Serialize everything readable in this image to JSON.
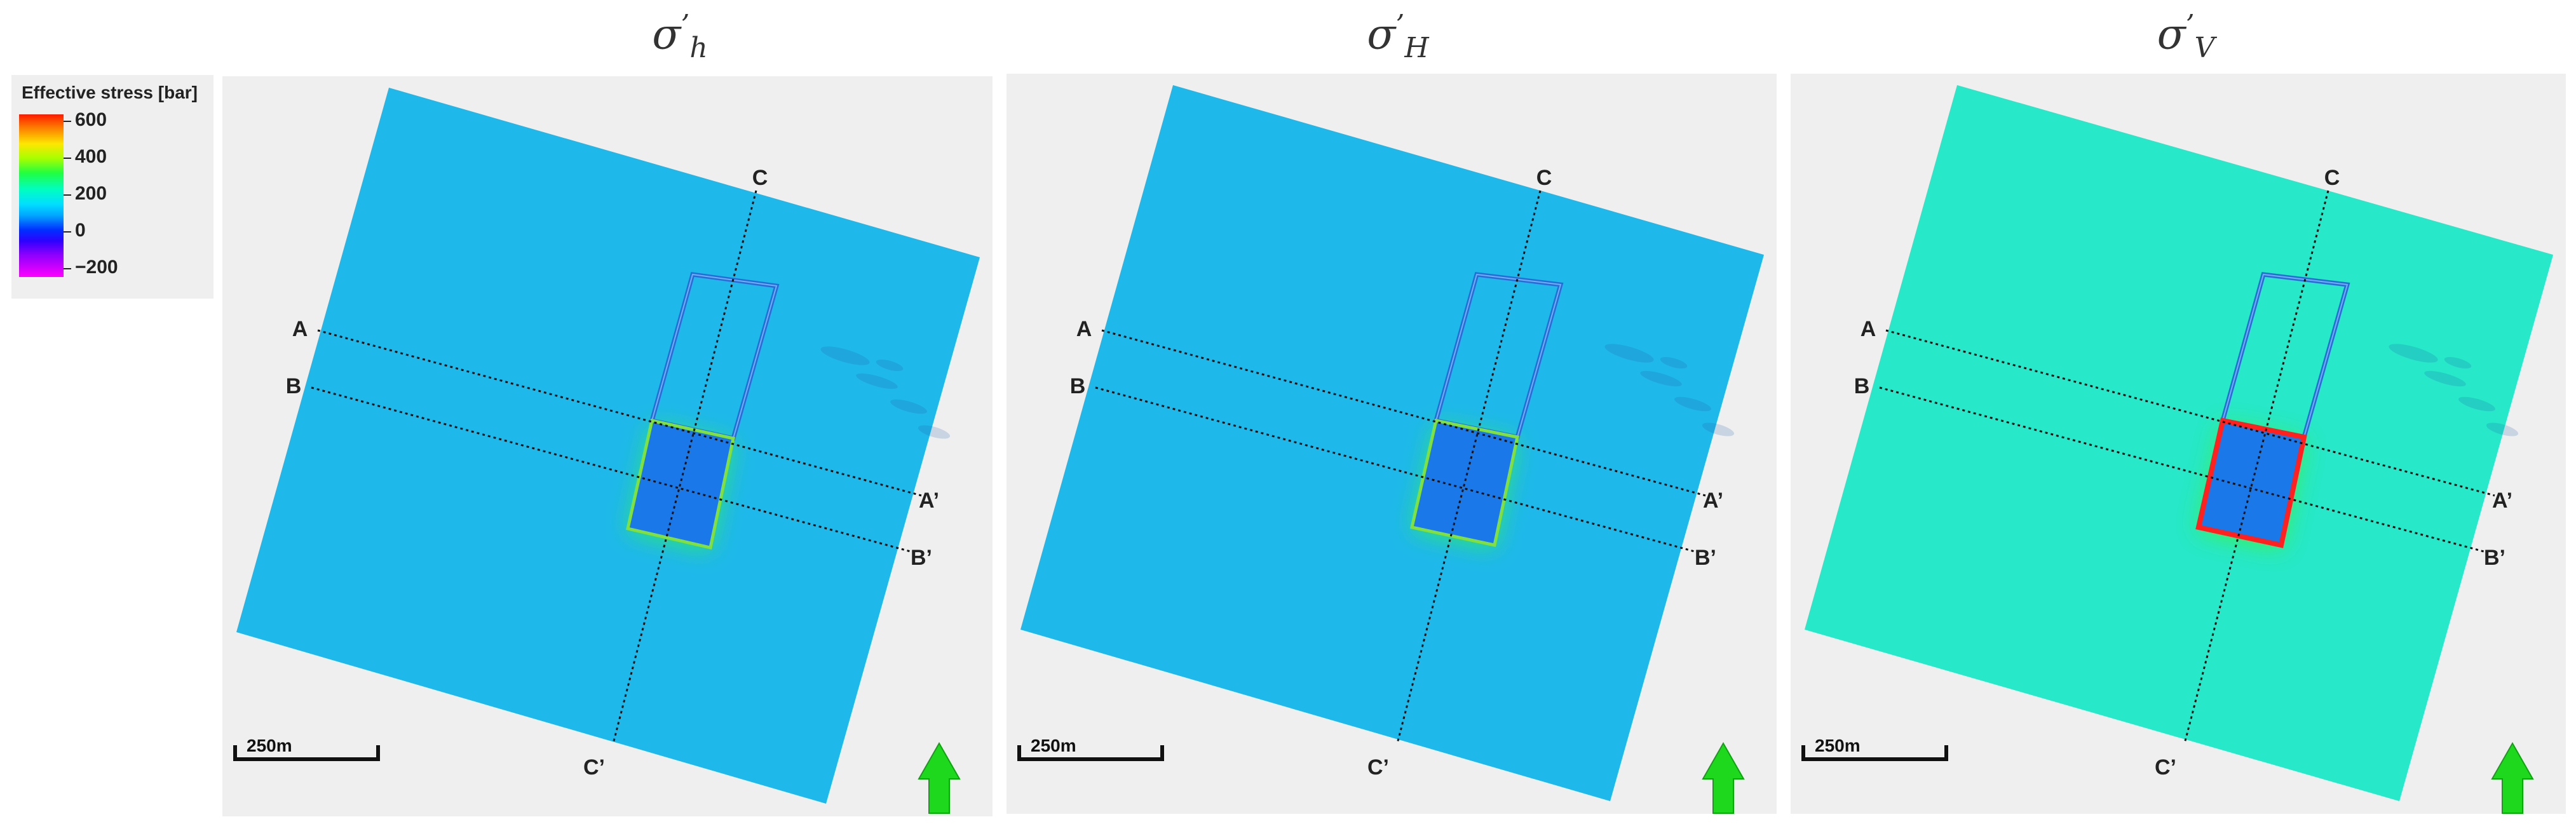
{
  "legend": {
    "title": "Effective stress [bar]",
    "ticks": [
      "600",
      "400",
      "200",
      "0",
      "−200"
    ]
  },
  "panels": [
    {
      "symbol": "σ",
      "prime": "’",
      "subscript": "h",
      "scale_label": "250m",
      "sections": {
        "a": "A",
        "a_prime": "A’",
        "b": "B",
        "b_prime": "B’",
        "c": "C",
        "c_prime": "C’"
      },
      "background_color": "#1fb8ea",
      "block_color": "#1a78e8",
      "halo_color": "#2ee86a",
      "rim_color": "#7fe040"
    },
    {
      "symbol": "σ",
      "prime": "’",
      "subscript": "H",
      "scale_label": "250m",
      "sections": {
        "a": "A",
        "a_prime": "A’",
        "b": "B",
        "b_prime": "B’",
        "c": "C",
        "c_prime": "C’"
      },
      "background_color": "#1fb8ea",
      "block_color": "#1a78e8",
      "halo_color": "#2ee86a",
      "rim_color": "#7fe040"
    },
    {
      "symbol": "σ",
      "prime": "’",
      "subscript": "V",
      "scale_label": "250m",
      "sections": {
        "a": "A",
        "a_prime": "A’",
        "b": "B",
        "b_prime": "B’",
        "c": "C",
        "c_prime": "C’"
      },
      "background_color": "#27e8c8",
      "block_color": "#1a78e8",
      "halo_color": "#3ef040",
      "rim_color": "#ff2020"
    }
  ],
  "north_arrow_color": "#1ed81e"
}
